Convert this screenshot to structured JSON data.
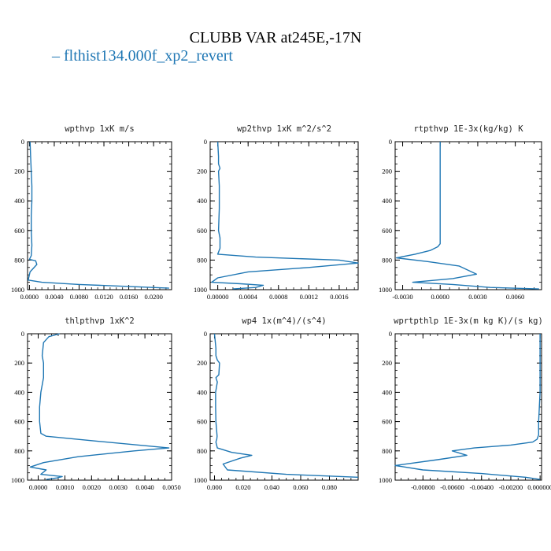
{
  "page": {
    "title": "CLUBB VAR at245E,-17N",
    "legend_label": "– flthist134.000f_xp2_revert",
    "series_color": "#1f77b4"
  },
  "chart_data": [
    {
      "type": "line",
      "title": "wpthvp   1xK m/s",
      "xlim": [
        -0.0003,
        0.0229
      ],
      "ylim": [
        1000,
        0
      ],
      "xticks": [
        0.0,
        0.004,
        0.008,
        0.012,
        0.016,
        0.02
      ],
      "xtick_labels": [
        "0.0000",
        "0.0040",
        "0.0080",
        "0.0120",
        "0.0160",
        "0.0200"
      ],
      "yticks": [
        0,
        200,
        400,
        600,
        800,
        1000
      ],
      "ytick_labels": [
        "0",
        "200",
        "400",
        "600",
        "800",
        "1000"
      ],
      "series": [
        {
          "x": [
            0.0001,
            0.0002,
            0.0003,
            0.0004,
            0.0004,
            0.0003,
            0.0003,
            0.0004,
            0.0003,
            0.0,
            0.001,
            0.0012,
            0.0001,
            -0.0002,
            0.002,
            0.008,
            0.016,
            0.0225
          ],
          "y": [
            0,
            100,
            200,
            300,
            400,
            500,
            600,
            700,
            770,
            795,
            805,
            830,
            880,
            935,
            950,
            965,
            978,
            990
          ]
        }
      ]
    },
    {
      "type": "line",
      "title": "wp2thvp   1xK m^2/s^2",
      "xlim": [
        -0.0001,
        0.00185
      ],
      "ylim": [
        1000,
        0
      ],
      "xticks": [
        0.0,
        0.0004,
        0.0008,
        0.0012,
        0.0016
      ],
      "xtick_labels": [
        "0.00000",
        "0.0004",
        "0.0008",
        "0.0012",
        "0.0016"
      ],
      "yticks": [
        0,
        200,
        400,
        600,
        800,
        1000
      ],
      "ytick_labels": [
        "0",
        "200",
        "400",
        "600",
        "800",
        "1000"
      ],
      "series": [
        {
          "x": [
            0.0,
            1e-05,
            1e-05,
            3e-05,
            1e-05,
            2e-05,
            2e-05,
            1e-05,
            3e-05,
            3e-05,
            0.0,
            0.0005,
            0.0016,
            0.00185,
            0.0012,
            0.0004,
            0.0,
            -8e-05,
            0.0003,
            0.0006,
            0.0005,
            0.0002
          ],
          "y": [
            0,
            100,
            150,
            180,
            200,
            300,
            450,
            600,
            650,
            720,
            760,
            780,
            800,
            820,
            850,
            880,
            920,
            950,
            960,
            970,
            985,
            995
          ]
        }
      ]
    },
    {
      "type": "line",
      "title": "rtpthvp   1E-3x(kg/kg) K",
      "xlim": [
        -0.0036,
        0.0081
      ],
      "ylim": [
        1000,
        0
      ],
      "xticks": [
        -0.003,
        0.0,
        0.003,
        0.006
      ],
      "xtick_labels": [
        "-0.0030",
        "0.0000",
        "0.0030",
        "0.0060"
      ],
      "yticks": [
        0,
        200,
        400,
        600,
        800,
        1000
      ],
      "ytick_labels": [
        "0",
        "200",
        "400",
        "600",
        "800",
        "1000"
      ],
      "series": [
        {
          "x": [
            0.0,
            0.0,
            0.0,
            0.0,
            0.0,
            -0.0002,
            -0.0008,
            -0.002,
            -0.0035,
            -0.001,
            0.0015,
            0.0029,
            0.001,
            -0.0022,
            0.001,
            0.004,
            0.0079
          ],
          "y": [
            0,
            200,
            400,
            600,
            690,
            710,
            735,
            760,
            785,
            810,
            840,
            895,
            925,
            950,
            965,
            985,
            995
          ]
        }
      ]
    },
    {
      "type": "line",
      "title": "thlpthvp   1xK^2",
      "xlim": [
        -0.0004,
        0.005
      ],
      "ylim": [
        1000,
        0
      ],
      "xticks": [
        0.0,
        0.001,
        0.002,
        0.003,
        0.004,
        0.005
      ],
      "xtick_labels": [
        "0.0000",
        "0.0010",
        "0.0020",
        "0.0030",
        "0.0040",
        "0.0050"
      ],
      "yticks": [
        0,
        200,
        400,
        600,
        800,
        1000
      ],
      "ytick_labels": [
        "0",
        "200",
        "400",
        "600",
        "800",
        "1000"
      ],
      "series": [
        {
          "x": [
            0.0008,
            0.0004,
            0.0002,
            0.00015,
            0.0002,
            0.0002,
            0.0001,
            5e-05,
            5e-05,
            0.0001,
            0.0003,
            0.002,
            0.0049,
            0.0036,
            0.0015,
            0.0002,
            -0.0003,
            0.0003,
            0.0001,
            0.0009,
            0.0007,
            0.0003
          ],
          "y": [
            0,
            20,
            60,
            150,
            200,
            300,
            400,
            500,
            600,
            680,
            700,
            730,
            780,
            800,
            840,
            880,
            910,
            930,
            960,
            975,
            985,
            995
          ]
        }
      ]
    },
    {
      "type": "line",
      "title": "wp4   1x(m^4)/(s^4)",
      "xlim": [
        -0.003,
        0.1
      ],
      "ylim": [
        1000,
        0
      ],
      "xticks": [
        0.0,
        0.02,
        0.04,
        0.06,
        0.08
      ],
      "xtick_labels": [
        "0.000",
        "0.020",
        "0.040",
        "0.060",
        "0.080"
      ],
      "yticks": [
        0,
        200,
        400,
        600,
        800,
        1000
      ],
      "ytick_labels": [
        "0",
        "200",
        "400",
        "600",
        "800",
        "1000"
      ],
      "series": [
        {
          "x": [
            0.0,
            0.001,
            0.001,
            0.002,
            0.0035,
            0.003,
            0.001,
            0.002,
            0.0008,
            0.0008,
            0.001,
            0.0018,
            0.0016,
            0.001,
            0.002,
            0.012,
            0.026,
            0.018,
            0.006,
            0.009,
            0.05,
            0.1
          ],
          "y": [
            0,
            100,
            150,
            180,
            200,
            280,
            300,
            330,
            400,
            500,
            600,
            700,
            720,
            740,
            780,
            810,
            830,
            850,
            890,
            930,
            960,
            980
          ]
        }
      ]
    },
    {
      "type": "line",
      "title": "wprtpthlp   1E-3x(m kg K)/(s kg)",
      "xlim": [
        -0.0099,
        0.0001
      ],
      "ylim": [
        1000,
        0
      ],
      "xticks": [
        -0.008,
        -0.006,
        -0.004,
        -0.002,
        0.0
      ],
      "xtick_labels": [
        "-0.00800",
        "-0.00600",
        "-0.00400",
        "-0.00200",
        "0.000000"
      ],
      "yticks": [
        0,
        200,
        400,
        600,
        800,
        1000
      ],
      "ytick_labels": [
        "0",
        "200",
        "400",
        "600",
        "800",
        "1000"
      ],
      "series": [
        {
          "x": [
            0.0,
            0.0,
            0.0,
            -0.0001,
            -0.0001,
            -0.0002,
            -0.0005,
            -0.002,
            -0.0045,
            -0.006,
            -0.005,
            -0.007,
            -0.0099,
            -0.008,
            -0.004,
            -0.001,
            0.0
          ],
          "y": [
            0,
            200,
            400,
            600,
            690,
            720,
            740,
            760,
            780,
            800,
            830,
            860,
            900,
            930,
            955,
            980,
            995
          ]
        }
      ]
    }
  ]
}
